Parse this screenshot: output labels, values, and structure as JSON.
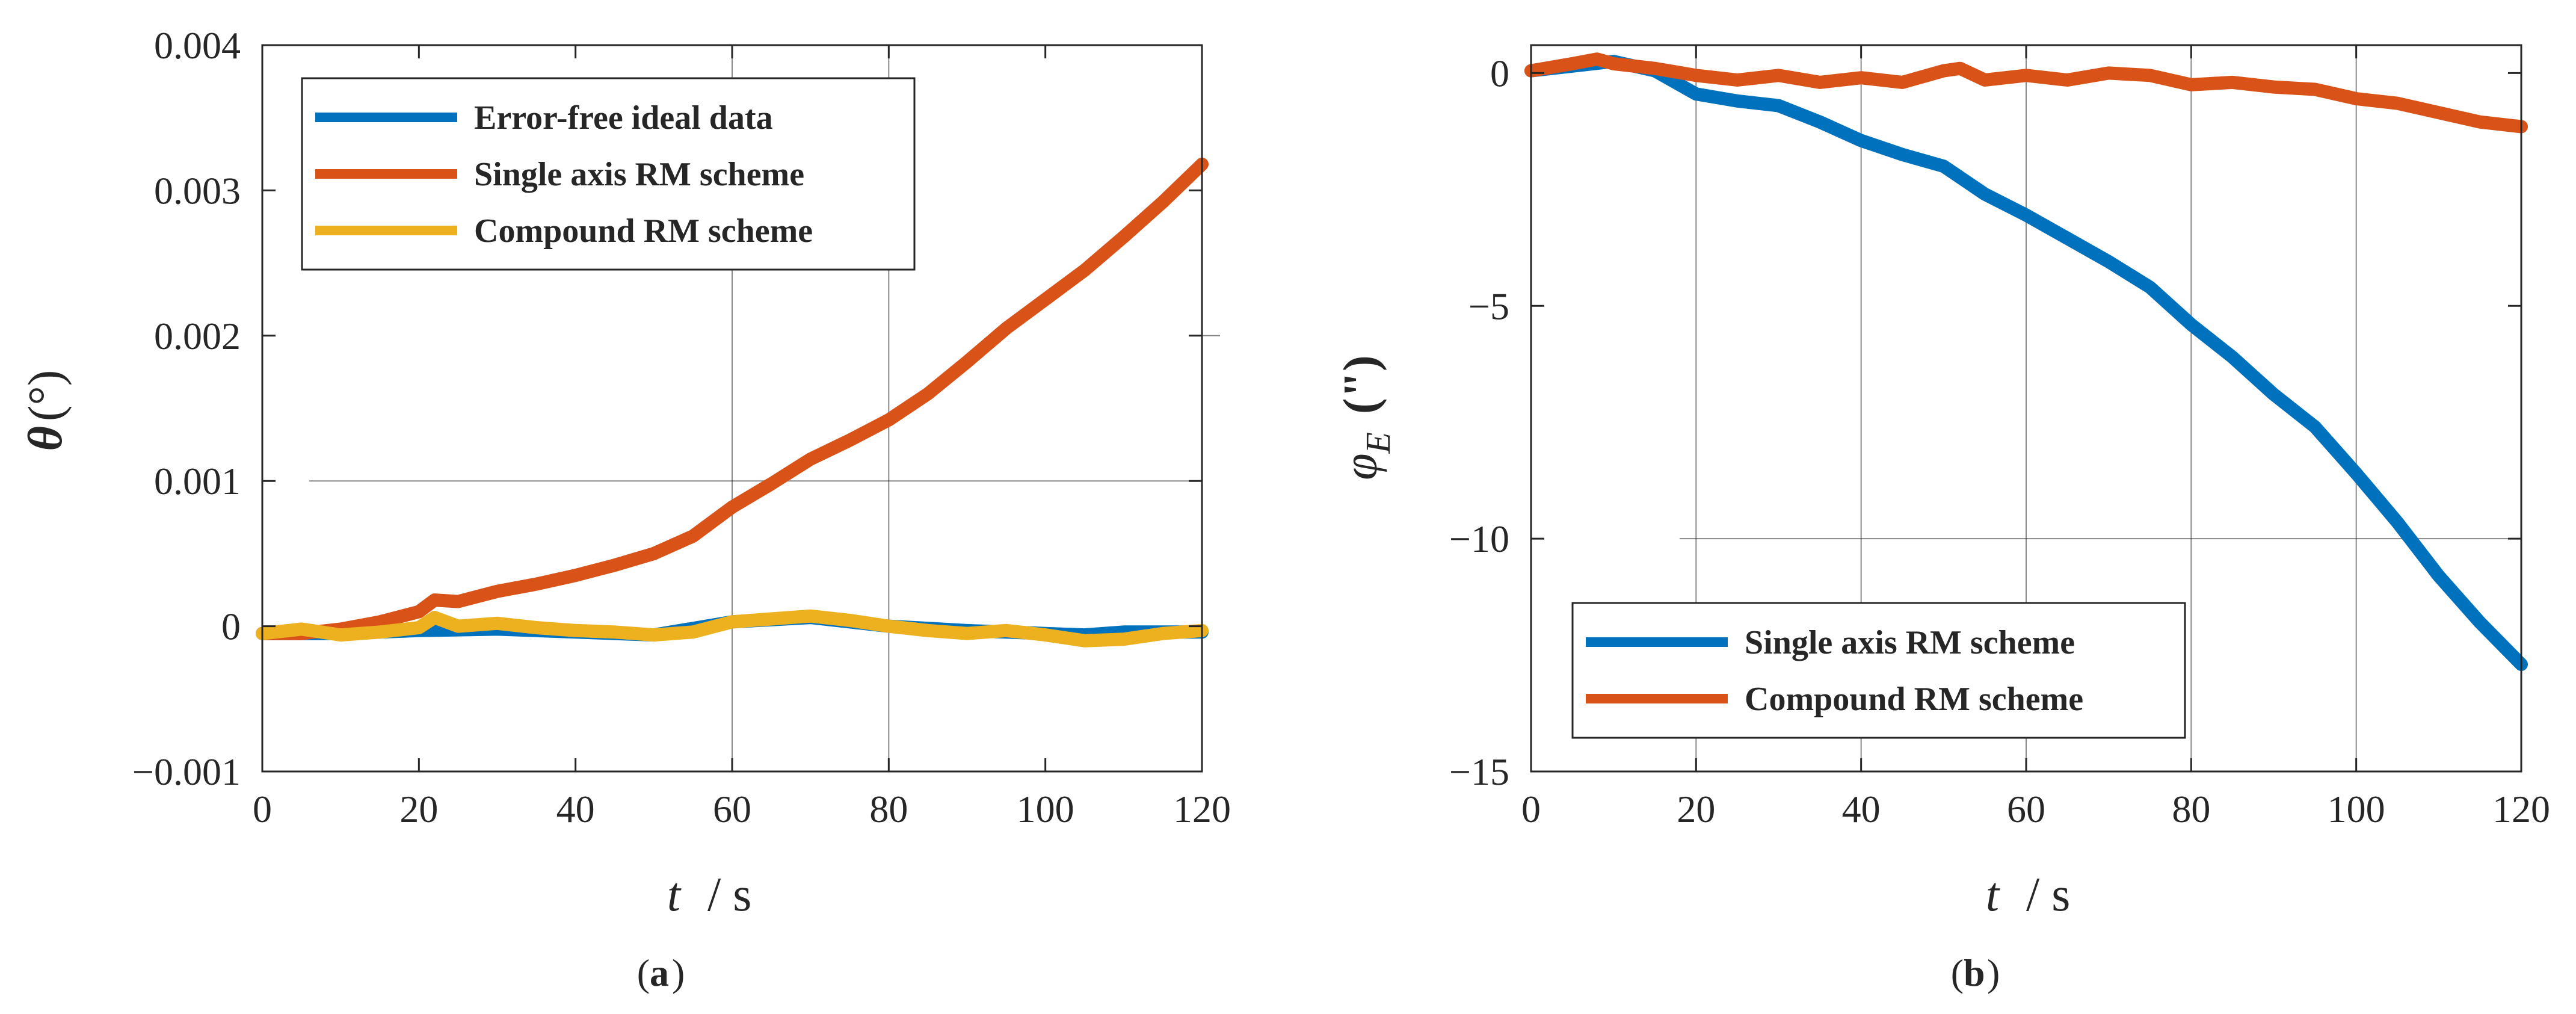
{
  "chart_data": [
    {
      "type": "line",
      "panel_label": "(a)",
      "panel_letter": "a",
      "xlabel": "t / s",
      "xlabel_var": "t",
      "xlabel_unit": "/ s",
      "ylabel": "θ (°)",
      "ylabel_var": "θ",
      "ylabel_unit": "(°)",
      "xlim": [
        0,
        120
      ],
      "ylim": [
        -0.001,
        0.004
      ],
      "x_ticks": [
        0,
        20,
        40,
        60,
        80,
        100,
        120
      ],
      "x_tick_labels": [
        "0",
        "20",
        "40",
        "60",
        "80",
        "100",
        "120"
      ],
      "y_ticks": [
        -0.001,
        0,
        0.001,
        0.002,
        0.003,
        0.004
      ],
      "y_tick_labels": [
        "−0.001",
        "0",
        "0.001",
        "0.002",
        "0.003",
        "0.004"
      ],
      "grid_lines": {
        "vertical": [
          {
            "x": 60,
            "y0": -0.001,
            "y1": 0.004
          },
          {
            "x": 80,
            "y0": -0.001,
            "y1": 0.004
          }
        ],
        "horizontal": [
          {
            "y": 0.002,
            "x0": 120,
            "x1": 126
          },
          {
            "y": 0.001,
            "x0": 6,
            "x1": 120
          }
        ]
      },
      "legend_position": "top-left",
      "series": [
        {
          "name": "Error-free ideal data",
          "color": "#0072BD",
          "x": [
            0,
            10,
            20,
            30,
            40,
            50,
            60,
            70,
            80,
            90,
            100,
            105,
            110,
            120
          ],
          "y": [
            -5e-05,
            -5e-05,
            -3e-05,
            -2e-05,
            -4e-05,
            -6e-05,
            3e-05,
            6e-05,
            0.0,
            -3e-05,
            -5e-05,
            -6e-05,
            -4e-05,
            -4e-05
          ]
        },
        {
          "name": "Single axis RM scheme",
          "color": "#D95319",
          "x": [
            0,
            5,
            10,
            15,
            20,
            22,
            25,
            30,
            35,
            40,
            45,
            50,
            55,
            60,
            65,
            70,
            75,
            80,
            85,
            90,
            95,
            100,
            105,
            110,
            115,
            120
          ],
          "y": [
            -5e-05,
            -5e-05,
            -2e-05,
            3e-05,
            0.0001,
            0.00018,
            0.00017,
            0.00024,
            0.00029,
            0.00035,
            0.00042,
            0.0005,
            0.00062,
            0.00082,
            0.00098,
            0.00115,
            0.00128,
            0.00142,
            0.0016,
            0.00182,
            0.00205,
            0.00225,
            0.00245,
            0.00268,
            0.00292,
            0.00318
          ]
        },
        {
          "name": "Compound RM scheme",
          "color": "#EDB120",
          "x": [
            0,
            5,
            10,
            15,
            20,
            22,
            25,
            30,
            35,
            40,
            45,
            50,
            55,
            60,
            65,
            70,
            75,
            80,
            85,
            90,
            95,
            100,
            105,
            110,
            115,
            120
          ],
          "y": [
            -5e-05,
            -2e-05,
            -6e-05,
            -4e-05,
            -1e-05,
            6e-05,
            0.0,
            2e-05,
            -1e-05,
            -3e-05,
            -4e-05,
            -6e-05,
            -4e-05,
            3e-05,
            5e-05,
            7e-05,
            4e-05,
            0.0,
            -3e-05,
            -5e-05,
            -3e-05,
            -6e-05,
            -0.0001,
            -9e-05,
            -5e-05,
            -3e-05
          ]
        }
      ]
    },
    {
      "type": "line",
      "panel_label": "(b)",
      "panel_letter": "b",
      "xlabel": "t / s",
      "xlabel_var": "t",
      "xlabel_unit": "/ s",
      "ylabel": "φE (\")",
      "ylabel_var": "φ",
      "ylabel_sub": "E",
      "ylabel_unit": "(\")",
      "xlim": [
        0,
        120
      ],
      "ylim": [
        -15,
        0.6
      ],
      "x_ticks": [
        0,
        20,
        40,
        60,
        80,
        100,
        120
      ],
      "x_tick_labels": [
        "0",
        "20",
        "40",
        "60",
        "80",
        "100",
        "120"
      ],
      "y_ticks": [
        -15,
        -10,
        -5,
        0
      ],
      "y_tick_labels": [
        "−15",
        "−10",
        "−5",
        "0"
      ],
      "grid_lines": {
        "vertical": [
          {
            "x": 20,
            "y0": -15,
            "y1": 0.6
          },
          {
            "x": 40,
            "y0": -15,
            "y1": 0.6
          },
          {
            "x": 60,
            "y0": -15,
            "y1": 0.6
          },
          {
            "x": 80,
            "y0": -15,
            "y1": 0.6
          },
          {
            "x": 100,
            "y0": -15,
            "y1": 0.6
          }
        ],
        "horizontal": [
          {
            "y": -10,
            "x0": 18,
            "x1": 120
          }
        ]
      },
      "legend_position": "bottom-left",
      "series": [
        {
          "name": "Single axis RM scheme",
          "color": "#0072BD",
          "x": [
            0,
            5,
            10,
            15,
            20,
            25,
            30,
            35,
            40,
            45,
            50,
            55,
            60,
            65,
            70,
            75,
            80,
            85,
            90,
            95,
            100,
            105,
            110,
            115,
            120
          ],
          "y": [
            0.05,
            0.15,
            0.25,
            0.05,
            -0.45,
            -0.6,
            -0.7,
            -1.05,
            -1.45,
            -1.75,
            -2.0,
            -2.6,
            -3.05,
            -3.55,
            -4.05,
            -4.6,
            -5.4,
            -6.1,
            -6.9,
            -7.6,
            -8.6,
            -9.65,
            -10.8,
            -11.8,
            -12.7
          ]
        },
        {
          "name": "Compound RM scheme",
          "color": "#D95319",
          "x": [
            0,
            5,
            8,
            10,
            15,
            20,
            25,
            30,
            35,
            40,
            45,
            50,
            52,
            55,
            60,
            65,
            70,
            75,
            80,
            85,
            90,
            95,
            100,
            105,
            110,
            115,
            120
          ],
          "y": [
            0.05,
            0.2,
            0.3,
            0.2,
            0.1,
            -0.05,
            -0.15,
            -0.05,
            -0.2,
            -0.1,
            -0.2,
            0.05,
            0.1,
            -0.15,
            -0.05,
            -0.15,
            0.0,
            -0.05,
            -0.25,
            -0.2,
            -0.3,
            -0.35,
            -0.55,
            -0.65,
            -0.85,
            -1.05,
            -1.15
          ]
        }
      ]
    }
  ]
}
